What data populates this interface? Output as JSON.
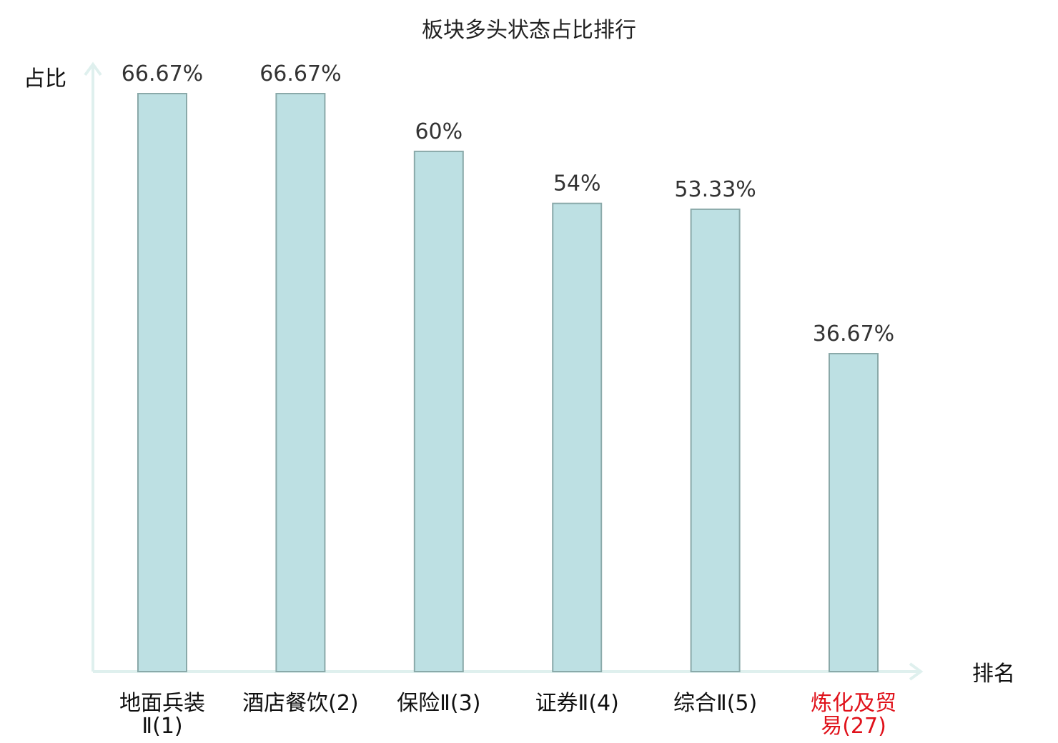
{
  "chart_data": {
    "type": "bar",
    "title": "板块多头状态占比排行",
    "ylabel": "占比",
    "xlabel": "排名",
    "categories": [
      {
        "line1": "地面兵装",
        "line2": "Ⅱ(1)",
        "highlight": false
      },
      {
        "line1": "酒店餐饮(2)",
        "line2": "",
        "highlight": false
      },
      {
        "line1": "保险Ⅱ(3)",
        "line2": "",
        "highlight": false
      },
      {
        "line1": "证券Ⅱ(4)",
        "line2": "",
        "highlight": false
      },
      {
        "line1": "综合Ⅱ(5)",
        "line2": "",
        "highlight": false
      },
      {
        "line1": "炼化及贸",
        "line2": "易(27)",
        "highlight": true
      }
    ],
    "values": [
      66.67,
      66.67,
      60,
      54,
      53.33,
      36.67
    ],
    "value_labels": [
      "66.67%",
      "66.67%",
      "60%",
      "54%",
      "53.33%",
      "36.67%"
    ],
    "ylim": [
      0,
      66.67
    ],
    "grid": false,
    "colors": {
      "bar": "#bde0e3",
      "axis": "#dff0ee",
      "label": "#111111",
      "highlight": "#e0121b"
    }
  }
}
